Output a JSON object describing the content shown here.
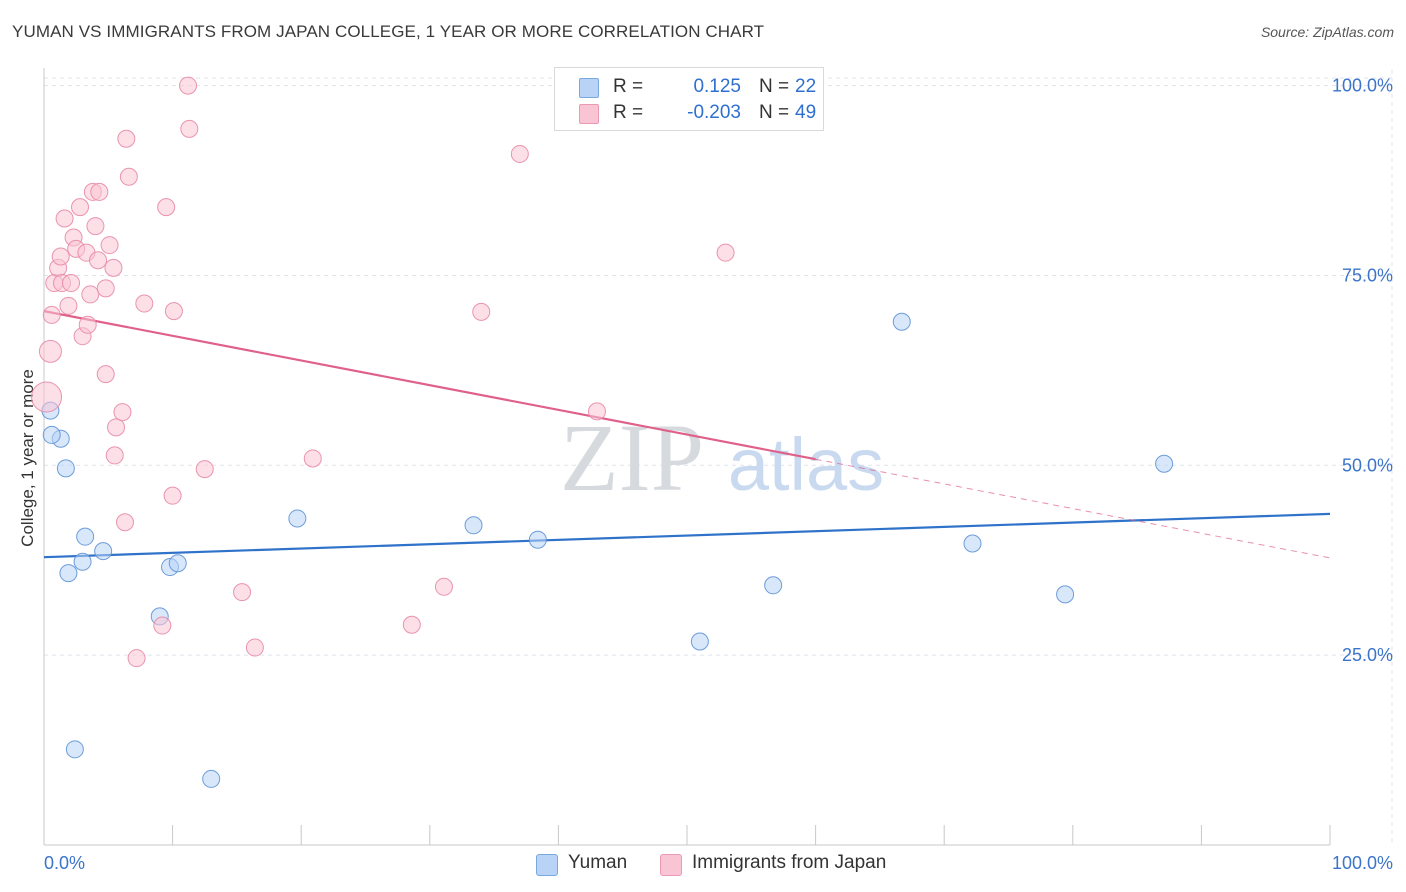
{
  "title": "YUMAN VS IMMIGRANTS FROM JAPAN COLLEGE, 1 YEAR OR MORE CORRELATION CHART",
  "source": "Source: ZipAtlas.com",
  "colors": {
    "series1_fill": "#b8d3f5",
    "series1_stroke": "#5f93d6",
    "series1_line": "#2f72c9",
    "series2_fill": "#f9c4d3",
    "series2_stroke": "#e88aa7",
    "series2_line": "#e0608a",
    "grid": "#dfe3ea",
    "axis_text": "#3b74c9"
  },
  "legend_top": {
    "rows": [
      {
        "r_label": "R =",
        "r_value": "0.125",
        "n_label": "N =",
        "n_value": "22"
      },
      {
        "r_label": "R =",
        "r_value": "-0.203",
        "n_label": "N =",
        "n_value": "49"
      }
    ]
  },
  "legend_bottom": [
    "Yuman",
    "Immigrants from Japan"
  ],
  "watermark": {
    "zip": "ZIP",
    "atlas": "atlas"
  },
  "chart_data": {
    "type": "scatter",
    "title": "YUMAN VS IMMIGRANTS FROM JAPAN COLLEGE, 1 YEAR OR MORE CORRELATION CHART",
    "xlabel": "",
    "ylabel": "College, 1 year or more",
    "xlim": [
      0,
      100
    ],
    "ylim": [
      0,
      101
    ],
    "x_tick_labels": [
      "0.0%",
      "100.0%"
    ],
    "y_ticks": [
      25,
      50,
      75,
      100
    ],
    "y_tick_labels": [
      "25.0%",
      "50.0%",
      "75.0%",
      "100.0%"
    ],
    "grid": true,
    "series": [
      {
        "name": "Yuman",
        "R": 0.125,
        "N": 22,
        "points": [
          [
            0.5,
            57.2
          ],
          [
            1.3,
            53.5
          ],
          [
            1.7,
            49.6
          ],
          [
            1.9,
            35.8
          ],
          [
            3.0,
            37.3
          ],
          [
            3.2,
            40.6
          ],
          [
            4.6,
            38.7
          ],
          [
            2.4,
            12.6
          ],
          [
            9.0,
            30.1
          ],
          [
            9.8,
            36.6
          ],
          [
            10.4,
            37.1
          ],
          [
            13.0,
            8.7
          ],
          [
            19.7,
            43.0
          ],
          [
            33.4,
            42.1
          ],
          [
            38.4,
            40.2
          ],
          [
            51.0,
            26.8
          ],
          [
            56.7,
            34.2
          ],
          [
            66.7,
            68.9
          ],
          [
            72.2,
            39.7
          ],
          [
            79.4,
            33.0
          ],
          [
            87.1,
            50.2
          ],
          [
            0.6,
            54.0
          ]
        ],
        "trend": {
          "x": [
            0,
            100
          ],
          "y": [
            37.9,
            43.6
          ],
          "style": "solid"
        }
      },
      {
        "name": "Immigrants from Japan",
        "R": -0.203,
        "N": 49,
        "points": [
          [
            0.2,
            59.0
          ],
          [
            0.5,
            65.0
          ],
          [
            0.6,
            69.8
          ],
          [
            0.8,
            74.0
          ],
          [
            1.1,
            76.0
          ],
          [
            1.3,
            77.5
          ],
          [
            1.6,
            82.5
          ],
          [
            1.4,
            74.0
          ],
          [
            1.9,
            71.0
          ],
          [
            2.1,
            74.0
          ],
          [
            2.3,
            80.0
          ],
          [
            2.5,
            78.5
          ],
          [
            2.8,
            84.0
          ],
          [
            3.0,
            67.0
          ],
          [
            3.3,
            78.0
          ],
          [
            3.4,
            68.5
          ],
          [
            3.6,
            72.5
          ],
          [
            3.8,
            86.0
          ],
          [
            4.0,
            81.5
          ],
          [
            4.3,
            86.0
          ],
          [
            4.2,
            77.0
          ],
          [
            4.8,
            73.3
          ],
          [
            5.1,
            79.0
          ],
          [
            5.4,
            76.0
          ],
          [
            5.6,
            55.0
          ],
          [
            5.5,
            51.3
          ],
          [
            4.8,
            62.0
          ],
          [
            6.1,
            57.0
          ],
          [
            6.3,
            42.5
          ],
          [
            6.4,
            93.0
          ],
          [
            6.6,
            88.0
          ],
          [
            7.2,
            24.6
          ],
          [
            7.8,
            71.3
          ],
          [
            9.5,
            84.0
          ],
          [
            9.2,
            28.9
          ],
          [
            10.0,
            46.0
          ],
          [
            10.1,
            70.3
          ],
          [
            11.2,
            100.0
          ],
          [
            11.3,
            94.3
          ],
          [
            12.5,
            49.5
          ],
          [
            15.4,
            33.3
          ],
          [
            16.4,
            26.0
          ],
          [
            20.9,
            50.9
          ],
          [
            28.6,
            29.0
          ],
          [
            31.1,
            34.0
          ],
          [
            34.0,
            70.2
          ],
          [
            37.0,
            91.0
          ],
          [
            43.0,
            57.1
          ],
          [
            53.0,
            78.0
          ]
        ],
        "trend": {
          "x": [
            0,
            60
          ],
          "y": [
            70.3,
            50.8
          ],
          "style": "solid",
          "extension": {
            "x": [
              60,
              100
            ],
            "y": [
              50.8,
              37.8
            ],
            "style": "dashed"
          }
        }
      }
    ]
  }
}
